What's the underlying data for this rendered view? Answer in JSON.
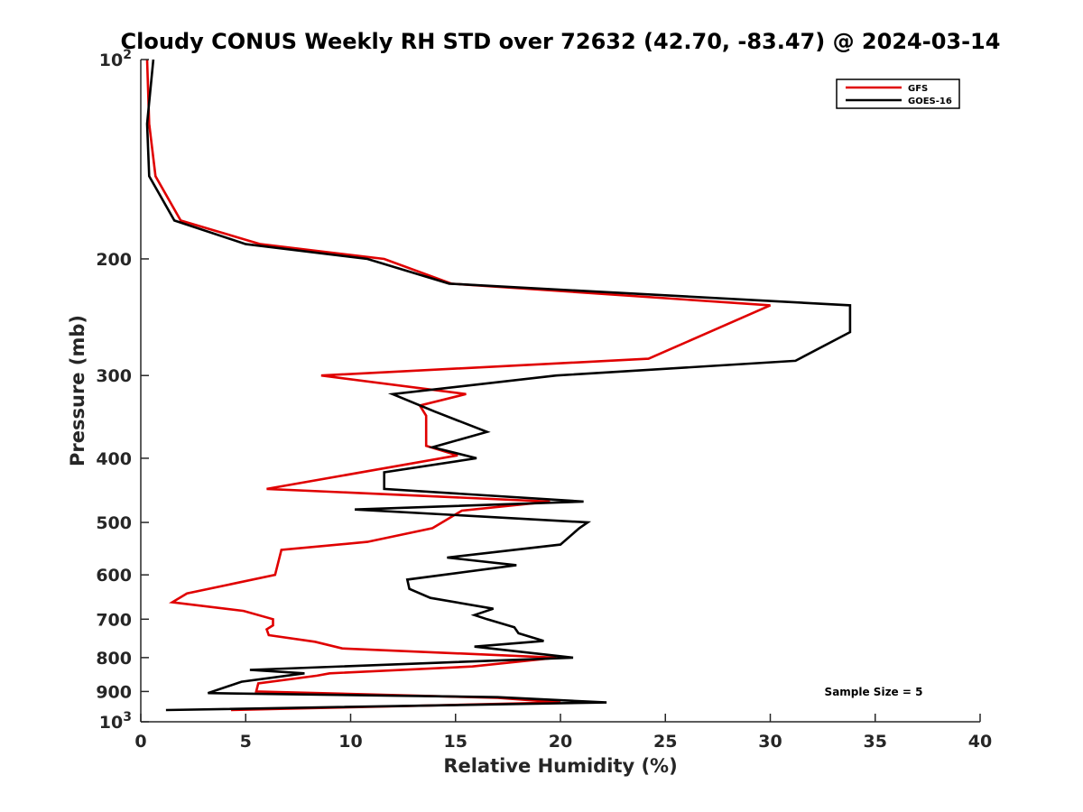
{
  "chart_data": {
    "type": "line",
    "title": "Cloudy CONUS Weekly RH STD over 72632 (42.70, -83.47) @ 2024-03-14",
    "xlabel": "Relative Humidity (%)",
    "ylabel": "Pressure (mb)",
    "xlim": [
      0,
      40
    ],
    "ylim": [
      100,
      1000
    ],
    "y_scale": "log",
    "y_reversed": true,
    "x_ticks": [
      "0",
      "5",
      "10",
      "15",
      "20",
      "25",
      "30",
      "35",
      "40"
    ],
    "y_ticks": [
      {
        "value": 100,
        "base": "10",
        "exp": "2"
      },
      {
        "value": 200,
        "label": "200"
      },
      {
        "value": 300,
        "label": "300"
      },
      {
        "value": 400,
        "label": "400"
      },
      {
        "value": 500,
        "label": "500"
      },
      {
        "value": 600,
        "label": "600"
      },
      {
        "value": 700,
        "label": "700"
      },
      {
        "value": 800,
        "label": "800"
      },
      {
        "value": 900,
        "label": "900"
      },
      {
        "value": 1000,
        "base": "10",
        "exp": "3"
      }
    ],
    "legend": {
      "position": "top-right"
    },
    "annotation": "Sample Size = 5",
    "series": [
      {
        "name": "GFS",
        "color": "#e00000",
        "points": [
          [
            0.3,
            100
          ],
          [
            0.4,
            125
          ],
          [
            0.7,
            150
          ],
          [
            1.9,
            175
          ],
          [
            5.7,
            190
          ],
          [
            11.6,
            200
          ],
          [
            14.8,
            218
          ],
          [
            30.0,
            235
          ],
          [
            24.2,
            283
          ],
          [
            8.6,
            300
          ],
          [
            15.5,
            320
          ],
          [
            13.3,
            333
          ],
          [
            13.6,
            345
          ],
          [
            13.6,
            383
          ],
          [
            15.1,
            396
          ],
          [
            6.0,
            445
          ],
          [
            19.5,
            465
          ],
          [
            15.3,
            480
          ],
          [
            13.9,
            510
          ],
          [
            10.8,
            535
          ],
          [
            6.7,
            550
          ],
          [
            6.4,
            600
          ],
          [
            2.2,
            640
          ],
          [
            1.5,
            660
          ],
          [
            4.9,
            680
          ],
          [
            6.3,
            700
          ],
          [
            6.3,
            715
          ],
          [
            6.0,
            725
          ],
          [
            6.1,
            740
          ],
          [
            8.3,
            757
          ],
          [
            9.6,
            775
          ],
          [
            19.8,
            800
          ],
          [
            15.8,
            825
          ],
          [
            9.0,
            845
          ],
          [
            8.4,
            852
          ],
          [
            5.6,
            875
          ],
          [
            5.5,
            900
          ],
          [
            17.0,
            920
          ],
          [
            20.0,
            935
          ],
          [
            4.3,
            960
          ]
        ]
      },
      {
        "name": "GOES-16",
        "color": "#000000",
        "points": [
          [
            0.6,
            100
          ],
          [
            0.3,
            125
          ],
          [
            0.4,
            150
          ],
          [
            1.6,
            175
          ],
          [
            5.0,
            190
          ],
          [
            10.8,
            200
          ],
          [
            14.7,
            218
          ],
          [
            33.8,
            235
          ],
          [
            33.8,
            258
          ],
          [
            31.2,
            285
          ],
          [
            19.8,
            300
          ],
          [
            12.0,
            320
          ],
          [
            14.0,
            340
          ],
          [
            16.5,
            365
          ],
          [
            13.9,
            385
          ],
          [
            16.0,
            400
          ],
          [
            11.6,
            420
          ],
          [
            11.6,
            445
          ],
          [
            21.1,
            465
          ],
          [
            10.2,
            478
          ],
          [
            21.3,
            500
          ],
          [
            20.9,
            510
          ],
          [
            20.0,
            540
          ],
          [
            14.6,
            565
          ],
          [
            17.9,
            580
          ],
          [
            12.7,
            610
          ],
          [
            12.8,
            630
          ],
          [
            13.8,
            650
          ],
          [
            16.8,
            675
          ],
          [
            15.9,
            690
          ],
          [
            16.5,
            700
          ],
          [
            17.8,
            720
          ],
          [
            18.0,
            735
          ],
          [
            19.2,
            755
          ],
          [
            15.9,
            770
          ],
          [
            20.6,
            800
          ],
          [
            5.2,
            835
          ],
          [
            7.8,
            845
          ],
          [
            4.8,
            870
          ],
          [
            3.2,
            905
          ],
          [
            17.0,
            918
          ],
          [
            22.2,
            935
          ],
          [
            1.2,
            960
          ]
        ]
      }
    ]
  }
}
